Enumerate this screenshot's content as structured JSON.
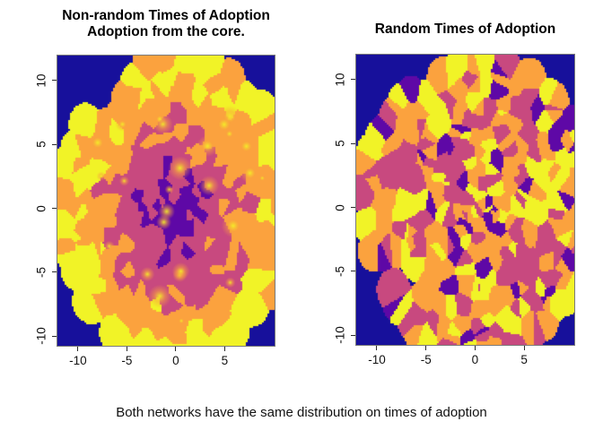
{
  "figure": {
    "caption": "Both networks have the same distribution on times of adoption"
  },
  "panels": [
    {
      "id": "nonrandom",
      "title_lines": [
        "Non-random Times of Adoption",
        "Adoption from the core."
      ],
      "mode": "core",
      "seed": 20
    },
    {
      "id": "random",
      "title_lines": [
        "Random Times of Adoption"
      ],
      "mode": "random",
      "seed": 77
    }
  ],
  "axes": {
    "xlim": [
      -12.1,
      10.1
    ],
    "ylim": [
      -10.75,
      11.95
    ],
    "x_ticks": [
      -10,
      -5,
      0,
      5
    ],
    "x_tick_labels": [
      "-10",
      "-5",
      "0",
      "5"
    ],
    "y_ticks": [
      10,
      5,
      0,
      -5,
      -10
    ],
    "y_tick_labels": [
      "10",
      "5",
      "0",
      "-5",
      "-10"
    ]
  },
  "palette": {
    "outside": "#17109b",
    "levels": [
      "#5e08a6",
      "#c8497f",
      "#fba23e",
      "#f1f327"
    ],
    "glow_core": "rgba(243,243,38,0.95)",
    "glow_mid": "rgba(251,162,62,0.5)",
    "glow_edge": "rgba(251,162,62,0)"
  },
  "render": {
    "nodes": 330,
    "radius": 11.6,
    "reach": 1.7,
    "radial_power": 0.62,
    "jitter": 5,
    "fractions": [
      0.09,
      0.33,
      0.38,
      0.2
    ],
    "cell": 2,
    "glows": 26
  },
  "chart_data": {
    "type": "heatmap",
    "panels": [
      {
        "title": "Non-random Times of Adoption — Adoption from the core.",
        "pattern": "Nearest-neighbor colored field over a circular network; earliest adopters (dark purple) clustered at the center, surrounded by magenta, then orange, with yellow (latest adopters) patches toward the periphery; dark navy marks space outside the network (corners).",
        "xlim": [
          -12.1,
          10.1
        ],
        "ylim": [
          -10.75,
          11.95
        ],
        "x_ticks": [
          -10,
          -5,
          0,
          5
        ],
        "y_ticks": [
          10,
          5,
          0,
          -5,
          -10
        ]
      },
      {
        "title": "Random Times of Adoption",
        "pattern": "Same circular network but adoption times assigned at random; purple, magenta, orange and yellow patches speckled uniformly across the disc; dark navy outside the network.",
        "xlim": [
          -12.1,
          10.1
        ],
        "ylim": [
          -10.75,
          11.95
        ],
        "x_ticks": [
          -10,
          -5,
          0,
          5
        ],
        "y_ticks": [
          10,
          5,
          0,
          -5,
          -10
        ]
      }
    ],
    "color_levels": [
      {
        "color": "#17109b",
        "meaning": "outside network / background"
      },
      {
        "color": "#5e08a6",
        "meaning": "earliest adoption (~9% of nodes)"
      },
      {
        "color": "#c8497f",
        "meaning": "early-mid adoption (~33% of nodes)"
      },
      {
        "color": "#fba23e",
        "meaning": "mid-late adoption (~38% of nodes)"
      },
      {
        "color": "#f1f327",
        "meaning": "latest adoption (~20% of nodes)"
      }
    ],
    "legend_position": "none",
    "grid": false,
    "caption": "Both networks have the same distribution on times of adoption"
  }
}
